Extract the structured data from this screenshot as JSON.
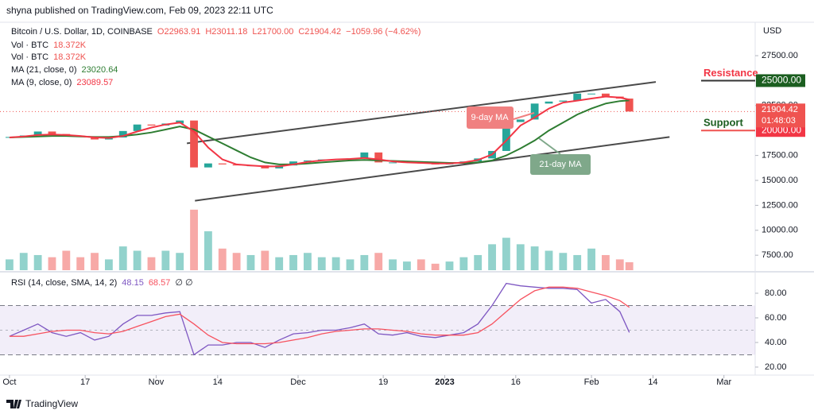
{
  "header": {
    "author_line": "shyna published on TradingView.com, Feb 09, 2023 22:11 UTC"
  },
  "footer": {
    "brand": "TradingView"
  },
  "chart_data": [
    {
      "type": "candlestick",
      "title": "Bitcoin / U.S. Dollar, 1D, COINBASE",
      "ohlc_readout": [
        "O22963.91",
        "H23011.18",
        "L21700.00",
        "C21904.42",
        "−1059.96 (−4.62%)"
      ],
      "currency": "USD",
      "x": [
        0,
        3,
        6,
        9,
        12,
        15,
        18,
        21,
        24,
        27,
        30,
        33,
        36,
        39,
        42,
        45,
        48,
        51,
        54,
        57,
        60,
        63,
        66,
        69,
        72,
        75,
        78,
        81,
        84,
        87,
        90,
        93,
        96,
        99,
        102,
        105,
        108,
        111,
        114,
        117,
        120,
        123,
        126,
        129,
        131
      ],
      "xlim": [
        -2,
        157.6
      ],
      "ylim": [
        6000,
        30850
      ],
      "yticks": [
        {
          "value": 7500,
          "label": "7500.00"
        },
        {
          "value": 10000,
          "label": "10000.00"
        },
        {
          "value": 12500,
          "label": "12500.00"
        },
        {
          "value": 15000,
          "label": "15000.00"
        },
        {
          "value": 17500,
          "label": "17500.00"
        },
        {
          "value": 22500,
          "label": "22500.00"
        },
        {
          "value": 27500,
          "label": "27500.00"
        }
      ],
      "up_color": "#26a69a",
      "down_color": "#ef5350",
      "values": [
        19350,
        19500,
        19900,
        19650,
        19500,
        19400,
        19100,
        19300,
        19950,
        20600,
        20500,
        20700,
        21000,
        16300,
        16700,
        16600,
        16500,
        16500,
        16200,
        16500,
        16900,
        17000,
        17100,
        17100,
        17200,
        17800,
        16800,
        16800,
        16850,
        16700,
        16600,
        16700,
        16900,
        17200,
        17950,
        20850,
        21100,
        22700,
        22900,
        23000,
        23700,
        23700,
        23400,
        23200,
        21904.42
      ],
      "last_price_countdown": "01:48:03",
      "series": [
        {
          "name": "MA (21, close, 0)",
          "color": "#2e7d32",
          "values": [
            19300,
            19350,
            19400,
            19450,
            19450,
            19400,
            19350,
            19350,
            19450,
            19600,
            19800,
            20100,
            20400,
            20100,
            19400,
            18700,
            18000,
            17300,
            16800,
            16600,
            16600,
            16700,
            16800,
            16900,
            17000,
            17050,
            17000,
            16950,
            16900,
            16850,
            16800,
            16750,
            16750,
            16800,
            17000,
            17500,
            18200,
            19000,
            20000,
            20800,
            21600,
            22200,
            22700,
            22950,
            23020.64
          ]
        },
        {
          "name": "MA (9, close, 0)",
          "color": "#f23645",
          "values": [
            19300,
            19400,
            19550,
            19600,
            19550,
            19450,
            19300,
            19250,
            19450,
            19900,
            20300,
            20600,
            20800,
            19900,
            18300,
            17100,
            16600,
            16500,
            16400,
            16400,
            16600,
            16850,
            17000,
            17100,
            17150,
            17250,
            17100,
            16900,
            16800,
            16750,
            16700,
            16700,
            16800,
            17050,
            17600,
            19000,
            20500,
            21300,
            22200,
            22800,
            23000,
            23200,
            23400,
            23300,
            23089.57
          ]
        }
      ],
      "volume": {
        "name": "Vol · BTC",
        "ylim": [
          0,
          250000
        ],
        "values": [
          25000,
          40000,
          35000,
          30000,
          45000,
          30000,
          40000,
          25000,
          55000,
          45000,
          30000,
          45000,
          40000,
          140000,
          90000,
          50000,
          40000,
          35000,
          45000,
          30000,
          35000,
          40000,
          30000,
          30000,
          25000,
          35000,
          40000,
          25000,
          20000,
          25000,
          15000,
          20000,
          30000,
          35000,
          60000,
          75000,
          60000,
          55000,
          45000,
          40000,
          35000,
          50000,
          35000,
          25000,
          18372
        ],
        "value_labels": [
          null,
          null,
          null,
          null,
          null,
          null,
          null,
          null,
          null,
          null,
          null,
          null,
          null,
          null,
          null,
          null,
          null,
          null,
          null,
          null,
          null,
          null,
          null,
          null,
          null,
          null,
          null,
          null,
          null,
          null,
          null,
          null,
          null,
          null,
          null,
          null,
          null,
          null,
          null,
          null,
          null,
          null,
          null,
          null,
          "18.372K"
        ]
      },
      "trendlines": [
        {
          "x": [
            37.5,
            136.6
          ],
          "y": [
            18714,
            24864
          ]
        },
        {
          "x": [
            39.2,
            139.5
          ],
          "y": [
            12963,
            19353
          ]
        }
      ],
      "levels": [
        {
          "text": "Resistance",
          "value": 25000,
          "label": "25000.00",
          "color": "#1b5e20",
          "text_color": "#f23645"
        },
        {
          "text": "Support",
          "value": 20000,
          "label": "20000.00",
          "color": "#f23645",
          "text_color": "#1b5e20"
        }
      ],
      "annotations": [
        {
          "text": "9-day MA",
          "color": "#f08080"
        },
        {
          "text": "21-day MA",
          "color": "#7fa88a"
        }
      ]
    },
    {
      "type": "line",
      "title": "RSI (14, close, SMA, 14, 2)",
      "na_readout": "∅ ∅",
      "x": [
        0,
        3,
        6,
        9,
        12,
        15,
        18,
        21,
        24,
        27,
        30,
        33,
        36,
        39,
        42,
        45,
        48,
        51,
        54,
        57,
        60,
        63,
        66,
        69,
        72,
        75,
        78,
        81,
        84,
        87,
        90,
        93,
        96,
        99,
        102,
        105,
        108,
        111,
        114,
        117,
        120,
        123,
        126,
        129,
        131
      ],
      "xlim": [
        -2,
        157.6
      ],
      "xticks": [
        {
          "value": 0,
          "label": "Oct"
        },
        {
          "value": 16,
          "label": "17"
        },
        {
          "value": 31,
          "label": "Nov"
        },
        {
          "value": 44,
          "label": "14"
        },
        {
          "value": 61,
          "label": "Dec"
        },
        {
          "value": 79,
          "label": "19"
        },
        {
          "value": 92,
          "label": "2023"
        },
        {
          "value": 107,
          "label": "16"
        },
        {
          "value": 123,
          "label": "Feb"
        },
        {
          "value": 136,
          "label": "14"
        },
        {
          "value": 151,
          "label": "Mar"
        }
      ],
      "ylim": [
        13.5,
        95.5
      ],
      "yticks": [
        {
          "value": 20,
          "label": "20.00"
        },
        {
          "value": 40,
          "label": "40.00"
        },
        {
          "value": 60,
          "label": "60.00"
        },
        {
          "value": 80,
          "label": "80.00"
        }
      ],
      "band": [
        30,
        70
      ],
      "midline": 50,
      "band_color": "#7e57c2",
      "series": [
        {
          "color": "#7e57c2",
          "values": [
            45,
            50,
            55,
            48,
            45,
            48,
            42,
            45,
            55,
            62,
            62,
            64,
            65,
            30,
            38,
            38,
            40,
            40,
            36,
            42,
            47,
            48,
            50,
            50,
            52,
            55,
            47,
            46,
            48,
            45,
            44,
            46,
            48,
            55,
            70,
            88,
            86,
            85,
            84,
            84,
            83,
            72,
            75,
            65,
            48.15
          ]
        },
        {
          "color": "#f7525f",
          "values": [
            45,
            45,
            47,
            49,
            50,
            50,
            48,
            47,
            49,
            53,
            57,
            61,
            63,
            55,
            46,
            40,
            39,
            39,
            39,
            40,
            42,
            44,
            47,
            49,
            50,
            51,
            51,
            50,
            49,
            47,
            46,
            46,
            46,
            48,
            55,
            65,
            75,
            82,
            85,
            85,
            84,
            81,
            78,
            74,
            68.57
          ]
        }
      ]
    }
  ]
}
